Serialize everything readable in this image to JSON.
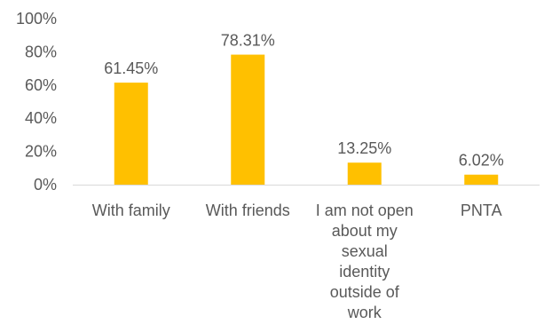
{
  "chart_data": {
    "type": "bar",
    "title": "",
    "xlabel": "",
    "ylabel": "",
    "ylim": [
      0,
      100
    ],
    "y_ticks": [
      "0%",
      "20%",
      "40%",
      "60%",
      "80%",
      "100%"
    ],
    "grid": false,
    "legend": "none",
    "bar_color": "#FFC000",
    "categories": [
      [
        "With family"
      ],
      [
        "With friends"
      ],
      [
        "I am not open",
        "about my",
        "sexual",
        "identity",
        "outside of",
        "work"
      ],
      [
        "PNTA"
      ]
    ],
    "values": [
      61.45,
      78.31,
      13.25,
      6.02
    ],
    "data_labels": [
      "61.45%",
      "78.31%",
      "13.25%",
      "6.02%"
    ]
  }
}
